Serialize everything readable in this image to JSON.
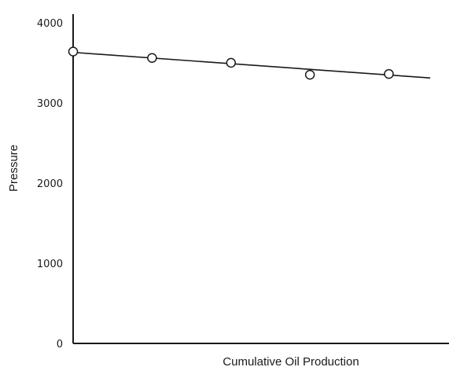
{
  "chart_data": {
    "type": "scatter",
    "title": "",
    "xlabel": "Cumulative Oil Production",
    "ylabel": "Pressure",
    "ylim": [
      0,
      4000
    ],
    "xlim": [
      0,
      5
    ],
    "y_ticks": [
      "0",
      "1000",
      "2000",
      "3000",
      "4000"
    ],
    "grid": false,
    "legend": "none",
    "series": [
      {
        "points": [
          {
            "x": 0.0,
            "y": 3650
          },
          {
            "x": 1.05,
            "y": 3570
          },
          {
            "x": 2.1,
            "y": 3510
          },
          {
            "x": 3.15,
            "y": 3360
          },
          {
            "x": 4.2,
            "y": 3370
          }
        ]
      }
    ],
    "trend_line": {
      "type": "linear",
      "points": [
        {
          "x": 0.0,
          "y": 3640
        },
        {
          "x": 4.75,
          "y": 3320
        }
      ]
    }
  }
}
